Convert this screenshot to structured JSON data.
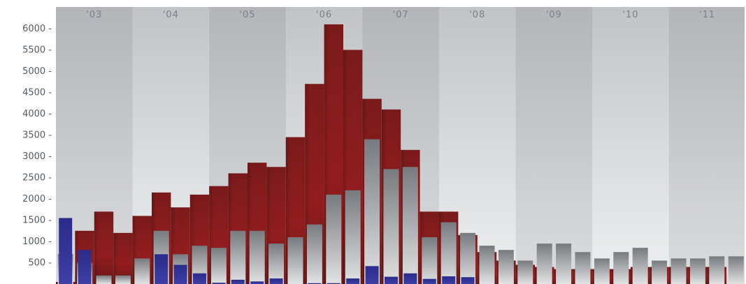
{
  "chart_data": {
    "type": "bar",
    "title": "",
    "xlabel": "",
    "ylabel": "",
    "ylim": [
      0,
      6400
    ],
    "y_ticks": [
      500,
      1000,
      1500,
      2000,
      2500,
      3000,
      3500,
      4000,
      4500,
      5000,
      5500,
      6000
    ],
    "y_tick_labels": [
      "500 -",
      "1000 -",
      "1500 -",
      "2000 -",
      "2500 -",
      "3000 -",
      "3500 -",
      "4000 -",
      "4500 -",
      "5000 -",
      "5500 -",
      "6000 -"
    ],
    "year_labels": [
      "'03",
      "'04",
      "'05",
      "'06",
      "'07",
      "'08",
      "'09",
      "'10",
      "'11"
    ],
    "quarters_per_year": 4,
    "grid": false,
    "series": [
      {
        "values": [
          50,
          1250,
          1700,
          1200,
          1600,
          2150,
          1800,
          2100,
          2300,
          2600,
          2850,
          2750,
          3450,
          4700,
          6100,
          5500,
          4350,
          4100,
          3150,
          1700,
          1700,
          1150,
          750,
          550,
          450,
          400,
          350,
          350,
          350,
          350,
          400,
          400,
          400,
          400,
          400
        ]
      },
      {
        "values": [
          700,
          500,
          200,
          200,
          600,
          1250,
          700,
          900,
          850,
          1250,
          1250,
          950,
          1100,
          1400,
          2100,
          2200,
          3400,
          2700,
          2750,
          1100,
          1450,
          1200,
          900,
          800,
          550,
          950,
          950,
          750,
          600,
          750,
          850,
          550,
          600,
          600,
          650,
          650
        ]
      },
      {
        "values": [
          1550,
          800,
          0,
          0,
          0,
          700,
          450,
          250,
          30,
          100,
          60,
          130,
          0,
          20,
          20,
          130,
          420,
          170,
          250,
          120,
          180,
          160
        ]
      }
    ],
    "colors": {
      "series_1": "#8c1c1e",
      "series_2": "#9a9a9a",
      "series_3": "#2c2d8c",
      "tick_text": "#555b64",
      "year_text": "#7a8088",
      "band_dark": "#c6c8cb",
      "band_light": "#d7d9dc"
    }
  }
}
